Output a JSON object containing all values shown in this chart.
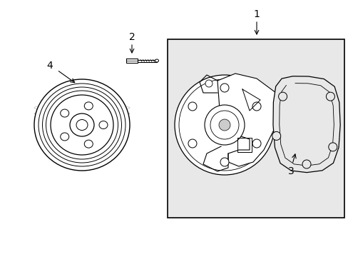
{
  "bg_color": "#ffffff",
  "box_bg": "#e8e8e8",
  "line_color": "#000000",
  "fig_w": 4.89,
  "fig_h": 3.6,
  "dpi": 100
}
